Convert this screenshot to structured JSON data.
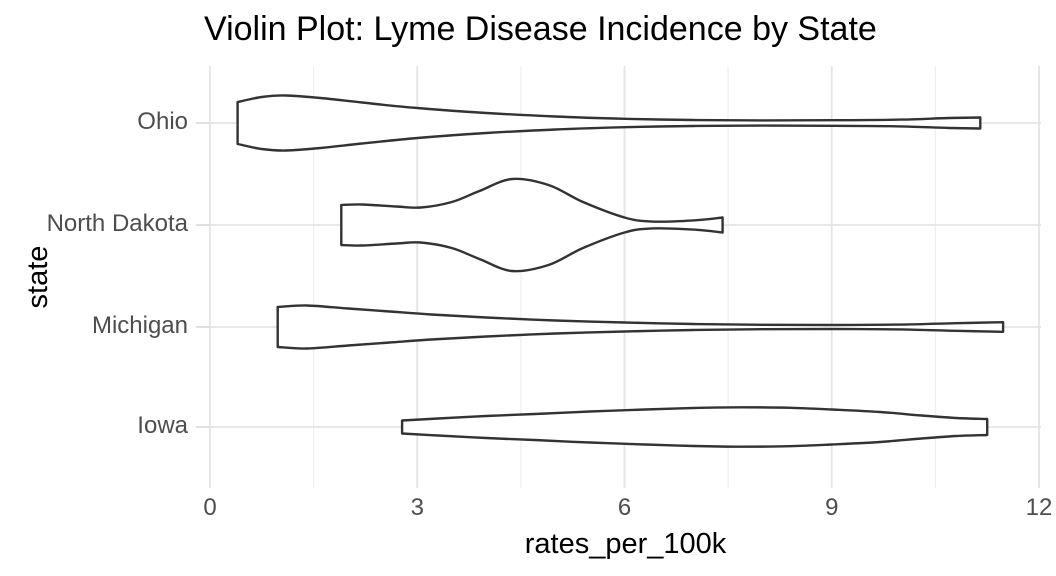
{
  "title": "Violin Plot: Lyme Disease Incidence by State",
  "axes": {
    "x_title": "rates_per_100k",
    "y_title": "state",
    "x_tick_labels": [
      "0",
      "3",
      "6",
      "9",
      "12"
    ],
    "y_tick_labels": [
      "Ohio",
      "North Dakota",
      "Michigan",
      "Iowa"
    ]
  },
  "colors": {
    "background": "#ffffff",
    "title_text": "#000000",
    "axis_title_text": "#000000",
    "tick_label_text": "#4d4d4d",
    "grid_major": "#e4e4e4",
    "grid_minor": "#efefef",
    "axis_tick": "#dcdcdc",
    "violin_stroke": "#333333",
    "violin_fill": "#ffffff"
  },
  "chart_data": {
    "type": "violin",
    "orientation": "horizontal",
    "title": "Violin Plot: Lyme Disease Incidence by State",
    "xlabel": "rates_per_100k",
    "ylabel": "state",
    "xlim": [
      0,
      12
    ],
    "x_major_ticks": [
      0,
      3,
      6,
      9,
      12
    ],
    "x_minor_ticks": [
      1.5,
      4.5,
      7.5,
      10.5
    ],
    "categories": [
      "Ohio",
      "North Dakota",
      "Michigan",
      "Iowa"
    ],
    "grid": "vertical major+minor, horizontal major per category",
    "legend": "none",
    "profile_format": "[rates_per_100k value, violin half-width in screen px]",
    "violins": [
      {
        "state": "Ohio",
        "min": 0.4,
        "max": 11.15,
        "peak_at": 1.1,
        "profile": [
          [
            0.4,
            21
          ],
          [
            0.75,
            26
          ],
          [
            1.1,
            27.5
          ],
          [
            1.6,
            25
          ],
          [
            2.2,
            20.5
          ],
          [
            3,
            15
          ],
          [
            4,
            10
          ],
          [
            5,
            6.5
          ],
          [
            6,
            4.2
          ],
          [
            7,
            3
          ],
          [
            8,
            2.6
          ],
          [
            9,
            2.8
          ],
          [
            10,
            3.4
          ],
          [
            10.7,
            5
          ],
          [
            11.15,
            5.5
          ]
        ]
      },
      {
        "state": "North Dakota",
        "min": 1.9,
        "max": 7.42,
        "peak_at": 4.37,
        "profile": [
          [
            1.9,
            20
          ],
          [
            2.2,
            20.5
          ],
          [
            2.7,
            18.5
          ],
          [
            3.05,
            17.5
          ],
          [
            3.5,
            23
          ],
          [
            3.9,
            34
          ],
          [
            4.37,
            46
          ],
          [
            4.9,
            40
          ],
          [
            5.4,
            23
          ],
          [
            6.0,
            7.5
          ],
          [
            6.4,
            3.4
          ],
          [
            7.0,
            4.6
          ],
          [
            7.42,
            7.5
          ]
        ]
      },
      {
        "state": "Michigan",
        "min": 0.98,
        "max": 11.48,
        "peak_at": 1.4,
        "profile": [
          [
            0.98,
            20
          ],
          [
            1.4,
            21.5
          ],
          [
            2,
            18.5
          ],
          [
            2.6,
            15.5
          ],
          [
            3.2,
            12.5
          ],
          [
            4,
            9.5
          ],
          [
            5,
            6.5
          ],
          [
            6,
            4.5
          ],
          [
            7,
            3
          ],
          [
            8,
            2.2
          ],
          [
            9,
            2
          ],
          [
            10,
            2.4
          ],
          [
            10.8,
            3.8
          ],
          [
            11.48,
            4.8
          ]
        ]
      },
      {
        "state": "Iowa",
        "min": 2.78,
        "max": 11.25,
        "peak_at": 7.7,
        "profile": [
          [
            2.78,
            6.5
          ],
          [
            3.3,
            8.5
          ],
          [
            4,
            11
          ],
          [
            4.7,
            13
          ],
          [
            5.5,
            15.5
          ],
          [
            6.3,
            17.5
          ],
          [
            7,
            19
          ],
          [
            7.7,
            19.7
          ],
          [
            8.4,
            19.2
          ],
          [
            9,
            17.5
          ],
          [
            9.7,
            15
          ],
          [
            10.3,
            11.5
          ],
          [
            10.8,
            9
          ],
          [
            11.25,
            8
          ]
        ]
      }
    ]
  }
}
